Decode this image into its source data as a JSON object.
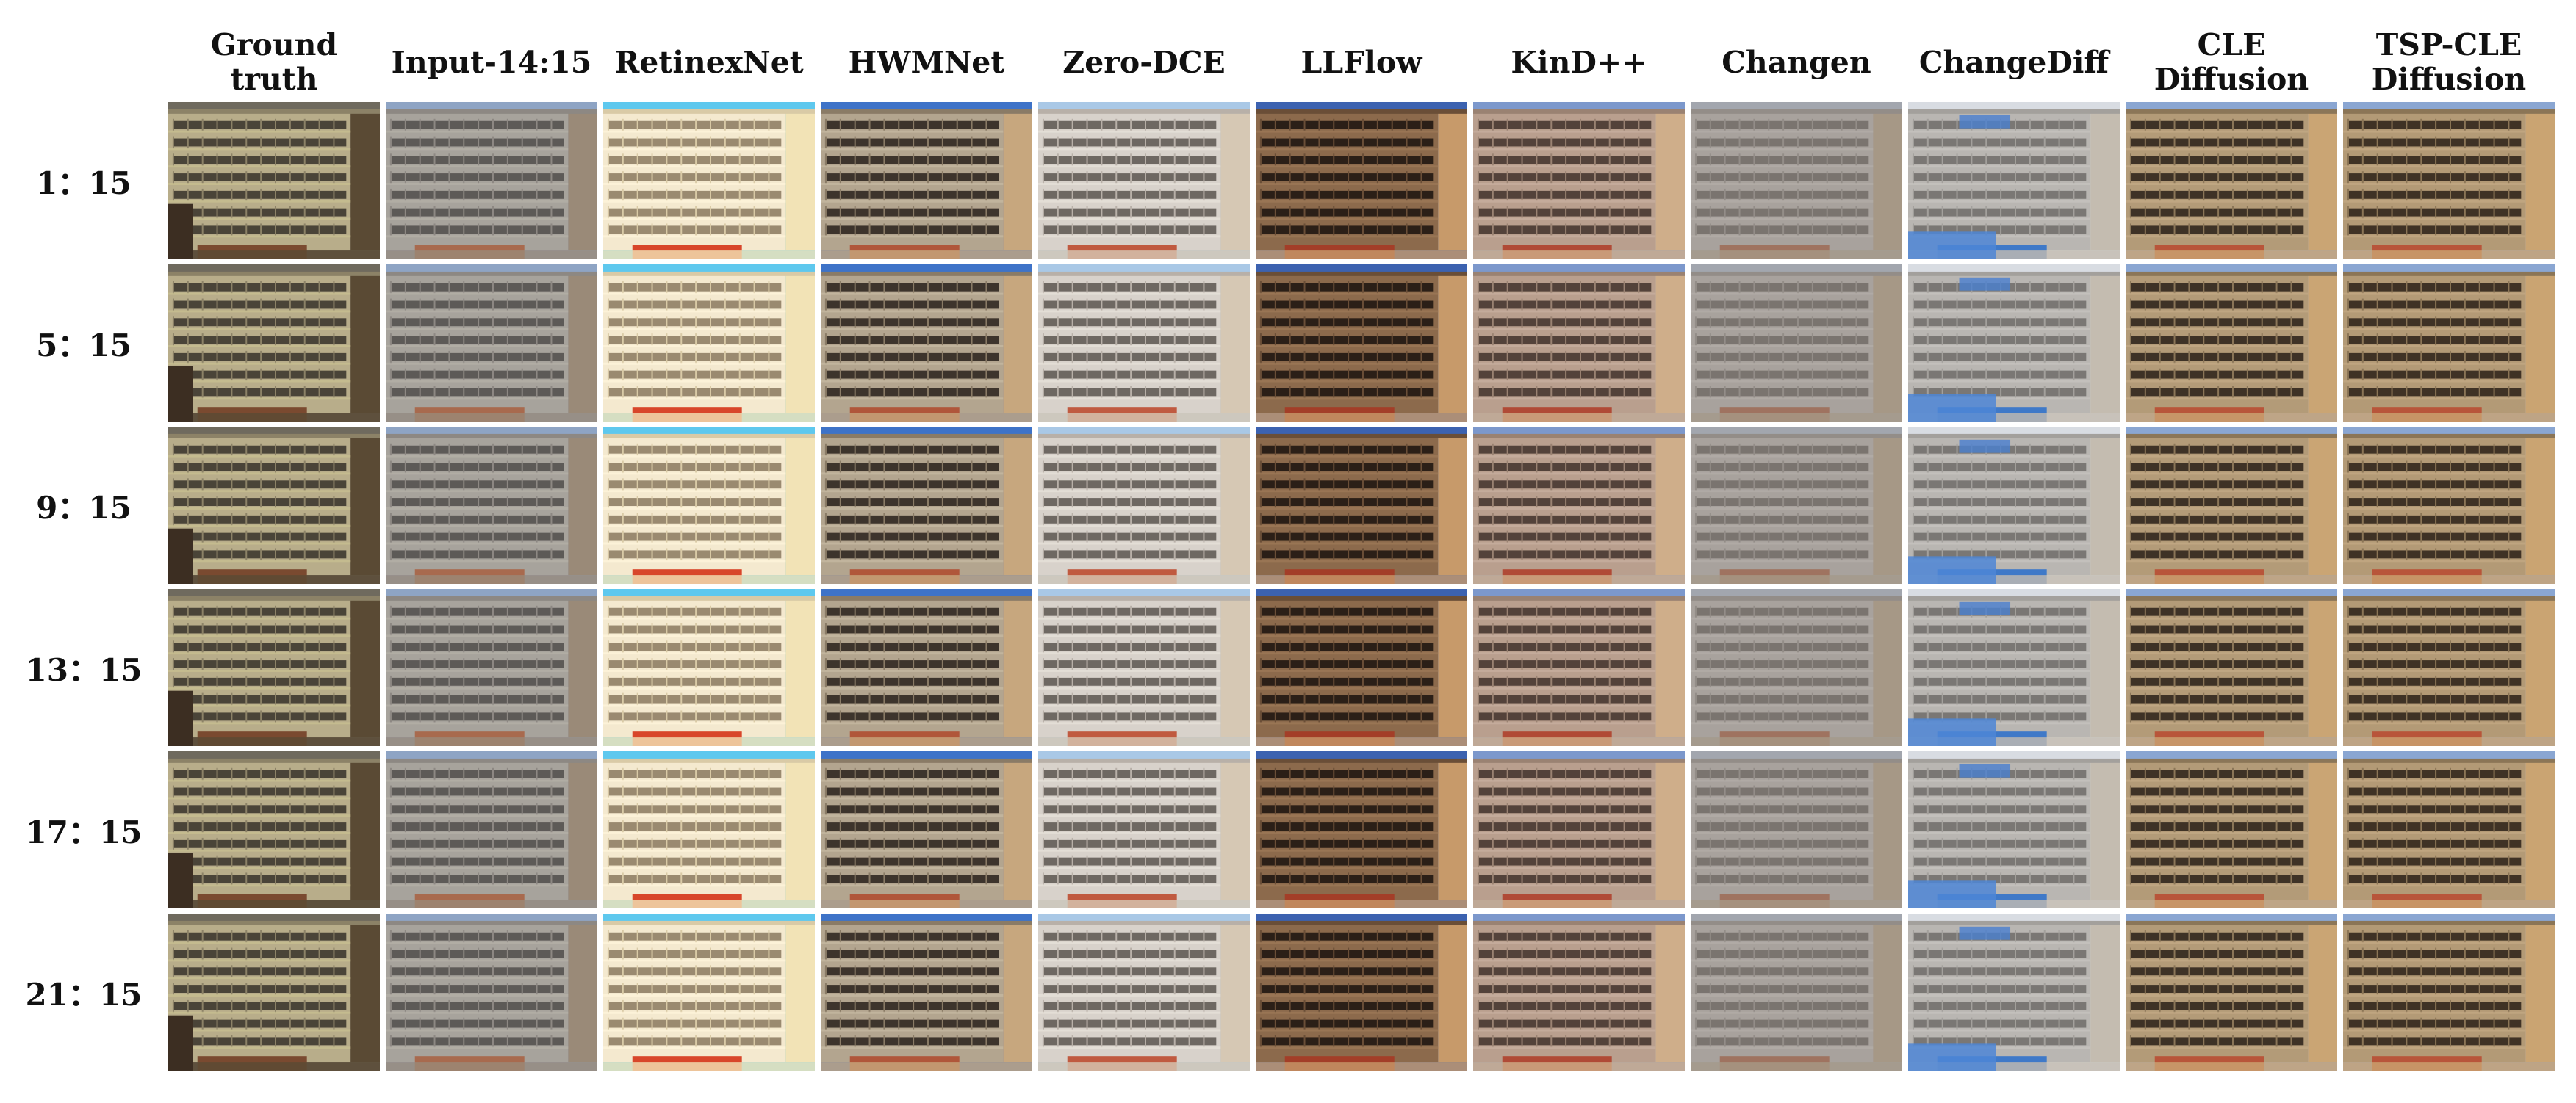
{
  "columns": [
    "Ground truth",
    "Input-14:15",
    "RetinexNet",
    "HWMNet",
    "Zero-DCE",
    "LLFlow",
    "KinD++",
    "Changen",
    "ChangeDiff",
    "CLE\nDiffusion",
    "TSP-CLE\nDiffusion"
  ],
  "rows": [
    "1：15",
    "5：15",
    "9：15",
    "13：15",
    "17：15",
    "21：15"
  ],
  "palettes": [
    {
      "sky": "#6f6a5e",
      "facade": "#b8ad8a",
      "window": "#4a4438",
      "frame": "#8c8267",
      "side": "#5a4a34",
      "roof": "#7a4a30",
      "tint": "#c9c091"
    },
    {
      "sky": "#8ea4c4",
      "facade": "#a7a39c",
      "window": "#5d5a57",
      "frame": "#8d8883",
      "side": "#9a8a78",
      "roof": "#a86a4e",
      "tint": "#b5b0a8"
    },
    {
      "sky": "#5ec8ee",
      "facade": "#f4e9cf",
      "window": "#9a8a70",
      "frame": "#d9caa6",
      "side": "#f2e3b6",
      "roof": "#d8462a",
      "tint": "#fff5dc"
    },
    {
      "sky": "#3e73c8",
      "facade": "#b3a58f",
      "window": "#3d342c",
      "frame": "#8a7b66",
      "side": "#c7a77e",
      "roof": "#b0563a",
      "tint": "#c8baa2"
    },
    {
      "sky": "#a9c8e6",
      "facade": "#d8d2cb",
      "window": "#6e6862",
      "frame": "#b8b0a8",
      "side": "#d6c8b4",
      "roof": "#c05a40",
      "tint": "#e8e2da"
    },
    {
      "sky": "#3c62b0",
      "facade": "#8c6a4c",
      "window": "#2b1f17",
      "frame": "#6a4e37",
      "side": "#c79a6a",
      "roof": "#a33e28",
      "tint": "#9e7a58"
    },
    {
      "sky": "#7c98cc",
      "facade": "#b99f8e",
      "window": "#53423a",
      "frame": "#9a8272",
      "side": "#cfae8a",
      "roof": "#b04a36",
      "tint": "#c9b1a1"
    },
    {
      "sky": "#a2a6ae",
      "facade": "#a8a29d",
      "window": "#7a746f",
      "frame": "#938d88",
      "side": "#a69886",
      "roof": "#9f7360",
      "tint": "#b4aea8"
    },
    {
      "sky": "#d8dce2",
      "facade": "#b9b6b2",
      "window": "#7a7774",
      "frame": "#a3a09c",
      "side": "#c4bcb0",
      "roof": "#3f79c8",
      "tint": "#c8c5c1"
    },
    {
      "sky": "#8aa6d2",
      "facade": "#b39b78",
      "window": "#3e3226",
      "frame": "#8b7658",
      "side": "#caa574",
      "roof": "#b8553a",
      "tint": "#c4ab86"
    },
    {
      "sky": "#8aa6d2",
      "facade": "#b39a76",
      "window": "#3f3225",
      "frame": "#8b7556",
      "side": "#caa472",
      "roof": "#b8553a",
      "tint": "#c4aa84"
    }
  ]
}
